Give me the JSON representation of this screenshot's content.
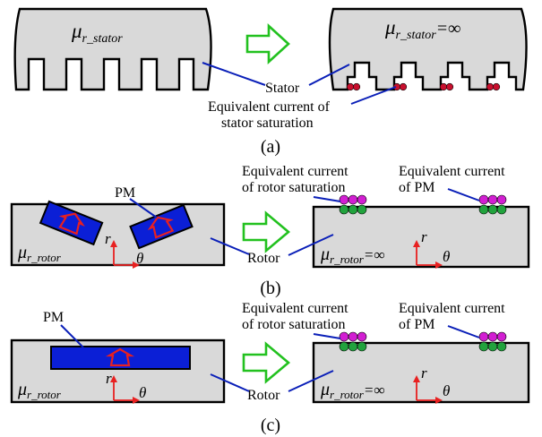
{
  "colors": {
    "body": "#d9d9d9",
    "leader": "#0a1fb8",
    "arrow": "#22c11f",
    "pm": "#0b1fd6",
    "magnetization": "#e82020",
    "current_red": "#c8102e",
    "current_magenta": "#d21fd2",
    "current_green": "#21a33d",
    "axes": "#e82020"
  },
  "panel_a": {
    "mu_left": "μ",
    "mu_left_sub": "r_stator",
    "mu_right": "μ",
    "mu_right_sub": "r_stator",
    "mu_right_eq": "=∞",
    "stator_label": "Stator",
    "eq_line1": "Equivalent current of",
    "eq_line2": "stator saturation",
    "caption": "(a)"
  },
  "panel_b": {
    "pm_label": "PM",
    "eq_rotor_line1": "Equivalent current",
    "eq_rotor_line2": "of rotor saturation",
    "eq_pm_line1": "Equivalent current",
    "eq_pm_line2": "of PM",
    "mu_left": "μ",
    "mu_left_sub": "r_rotor",
    "mu_right": "μ",
    "mu_right_sub": "r_rotor",
    "mu_right_eq": "=∞",
    "axis_r": "r",
    "axis_theta": "θ",
    "rotor_label": "Rotor",
    "caption": "(b)"
  },
  "panel_c": {
    "pm_label": "PM",
    "eq_rotor_line1": "Equivalent current",
    "eq_rotor_line2": "of rotor saturation",
    "eq_pm_line1": "Equivalent current",
    "eq_pm_line2": "of PM",
    "mu_left": "μ",
    "mu_left_sub": "r_rotor",
    "mu_right": "μ",
    "mu_right_sub": "r_rotor",
    "mu_right_eq": "=∞",
    "axis_r": "r",
    "axis_theta": "θ",
    "rotor_label": "Rotor",
    "caption": "(c)"
  }
}
